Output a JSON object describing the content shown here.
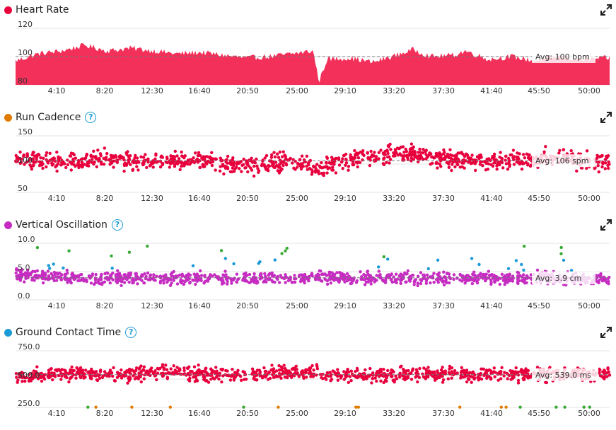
{
  "x_tick_labels": [
    "4:10",
    "8:20",
    "12:30",
    "16:40",
    "20:50",
    "25:00",
    "29:10",
    "33:20",
    "37:30",
    "41:40",
    "45:50",
    "50:00"
  ],
  "panels": [
    {
      "title": "Heart Rate",
      "dot_color": "#e8003d",
      "has_help": false,
      "avg_label": "Avg: 100 bpm",
      "y_ticks": [
        "120",
        "100",
        "80"
      ]
    },
    {
      "title": "Run Cadence",
      "dot_color": "#e07b00",
      "has_help": true,
      "avg_label": "Avg: 106 spm",
      "y_ticks": [
        "150",
        "100",
        "50"
      ]
    },
    {
      "title": "Vertical Oscillation",
      "dot_color": "#c62cc1",
      "has_help": true,
      "avg_label": "Avg: 3.9 cm",
      "y_ticks": [
        "10.0",
        "5.0",
        "0.0"
      ]
    },
    {
      "title": "Ground Contact Time",
      "dot_color": "#1a9ad6",
      "has_help": true,
      "avg_label": "Avg: 539.0 ms",
      "y_ticks": [
        "750.0",
        "500.0",
        "250.0"
      ]
    }
  ],
  "chart_data": [
    {
      "type": "area",
      "x_unit": "elapsed time (min:sec)",
      "ylim": [
        80,
        120
      ],
      "x_range_minutes": [
        0,
        51.5
      ],
      "avg": 100,
      "color": "#f2305a",
      "profile": [
        {
          "t": 0,
          "v": 97
        },
        {
          "t": 2,
          "v": 102
        },
        {
          "t": 4,
          "v": 104
        },
        {
          "t": 6,
          "v": 108
        },
        {
          "t": 8,
          "v": 104
        },
        {
          "t": 10,
          "v": 106
        },
        {
          "t": 12,
          "v": 104
        },
        {
          "t": 14,
          "v": 102
        },
        {
          "t": 16,
          "v": 103
        },
        {
          "t": 18,
          "v": 101
        },
        {
          "t": 20,
          "v": 99
        },
        {
          "t": 22,
          "v": 100
        },
        {
          "t": 24,
          "v": 102
        },
        {
          "t": 25.8,
          "v": 104
        },
        {
          "t": 26.3,
          "v": 82
        },
        {
          "t": 27,
          "v": 98
        },
        {
          "t": 29,
          "v": 99
        },
        {
          "t": 31,
          "v": 96
        },
        {
          "t": 33,
          "v": 101
        },
        {
          "t": 34.5,
          "v": 105
        },
        {
          "t": 36,
          "v": 100
        },
        {
          "t": 38,
          "v": 101
        },
        {
          "t": 39,
          "v": 104
        },
        {
          "t": 41,
          "v": 98
        },
        {
          "t": 43,
          "v": 100
        },
        {
          "t": 45,
          "v": 97
        },
        {
          "t": 47,
          "v": 100
        },
        {
          "t": 49,
          "v": 98
        },
        {
          "t": 51.5,
          "v": 99
        }
      ]
    },
    {
      "type": "scatter",
      "ylim": [
        50,
        150
      ],
      "x_range_minutes": [
        0,
        51.5
      ],
      "avg": 106,
      "point_colors": [
        "#e8003d"
      ],
      "profile": [
        {
          "t": 0,
          "v": 112
        },
        {
          "t": 4,
          "v": 104
        },
        {
          "t": 8,
          "v": 108
        },
        {
          "t": 12,
          "v": 103
        },
        {
          "t": 16,
          "v": 106
        },
        {
          "t": 20,
          "v": 98
        },
        {
          "t": 24,
          "v": 108
        },
        {
          "t": 26,
          "v": 88
        },
        {
          "t": 30,
          "v": 115
        },
        {
          "t": 34,
          "v": 118
        },
        {
          "t": 38,
          "v": 108
        },
        {
          "t": 42,
          "v": 105
        },
        {
          "t": 46,
          "v": 112
        },
        {
          "t": 51.5,
          "v": 104
        }
      ],
      "spread": 22
    },
    {
      "type": "scatter",
      "ylim": [
        0,
        10
      ],
      "x_range_minutes": [
        0,
        51.5
      ],
      "avg": 3.9,
      "point_colors": [
        "#c62cc1",
        "#1a9ad6",
        "#3aa935"
      ],
      "profile": [
        {
          "t": 0,
          "v": 4.5
        },
        {
          "t": 4,
          "v": 4.0
        },
        {
          "t": 8,
          "v": 3.8
        },
        {
          "t": 12,
          "v": 3.9
        },
        {
          "t": 16,
          "v": 3.8
        },
        {
          "t": 20,
          "v": 3.7
        },
        {
          "t": 24,
          "v": 3.8
        },
        {
          "t": 27,
          "v": 3.9
        },
        {
          "t": 30,
          "v": 4.0
        },
        {
          "t": 34,
          "v": 3.9
        },
        {
          "t": 38,
          "v": 3.8
        },
        {
          "t": 42,
          "v": 3.8
        },
        {
          "t": 46,
          "v": 3.9
        },
        {
          "t": 51.5,
          "v": 3.6
        }
      ],
      "spread": 1.6
    },
    {
      "type": "scatter",
      "ylim": [
        250,
        750
      ],
      "x_range_minutes": [
        0,
        51.5
      ],
      "avg": 539,
      "point_colors": [
        "#e8003d",
        "#e07b00",
        "#3aa935"
      ],
      "profile": [
        {
          "t": 0,
          "v": 520
        },
        {
          "t": 4,
          "v": 545
        },
        {
          "t": 8,
          "v": 535
        },
        {
          "t": 12,
          "v": 560
        },
        {
          "t": 16,
          "v": 540
        },
        {
          "t": 20,
          "v": 535
        },
        {
          "t": 24,
          "v": 560
        },
        {
          "t": 28,
          "v": 540
        },
        {
          "t": 32,
          "v": 530
        },
        {
          "t": 36,
          "v": 545
        },
        {
          "t": 40,
          "v": 540
        },
        {
          "t": 44,
          "v": 535
        },
        {
          "t": 48,
          "v": 540
        },
        {
          "t": 51.5,
          "v": 545
        }
      ],
      "spread": 90
    }
  ]
}
